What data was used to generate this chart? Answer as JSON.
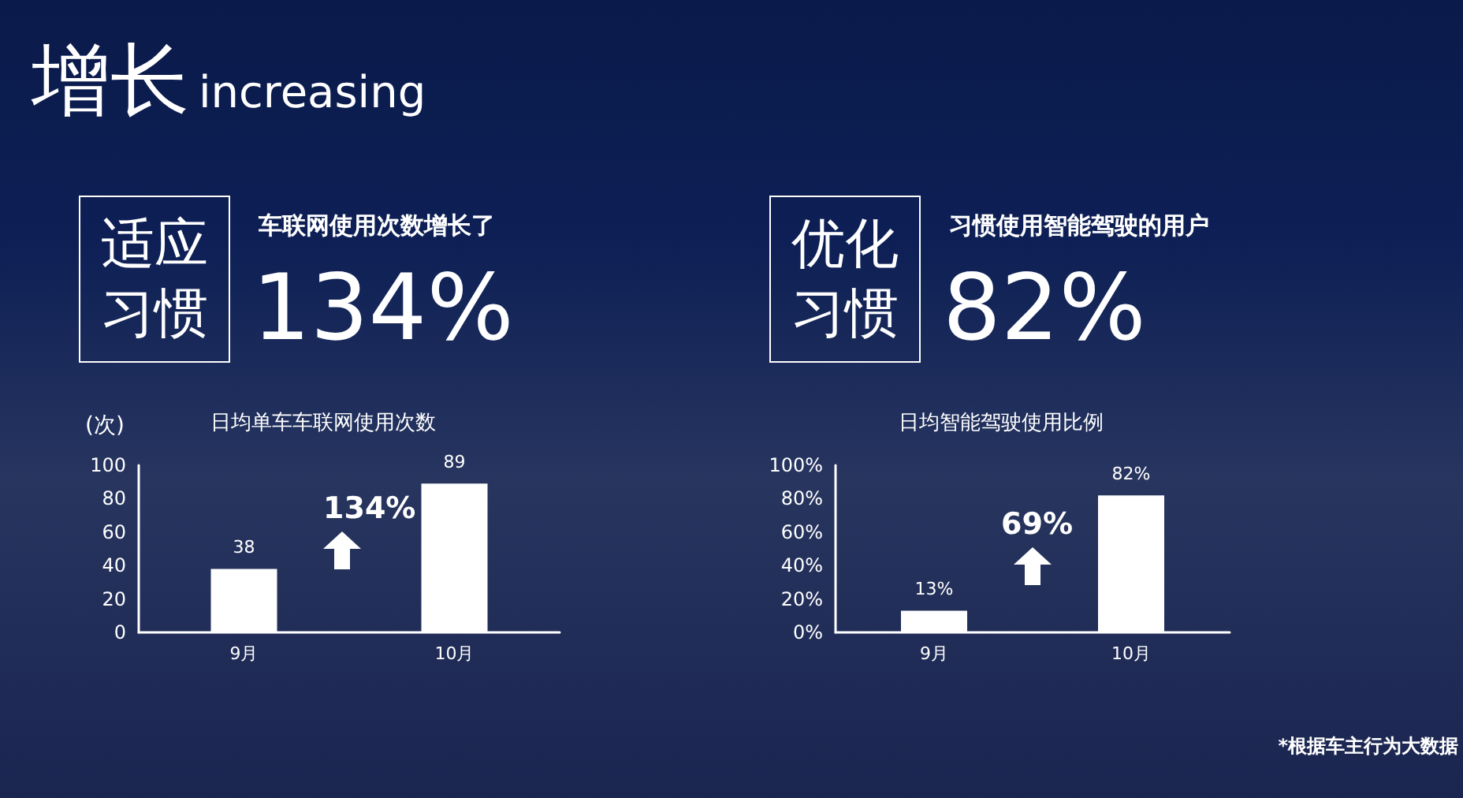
{
  "chart_data": [
    {
      "type": "other",
      "title": "增长",
      "subtitle": "increasing"
    },
    {
      "type": "other",
      "title": "适应习惯",
      "subtitle": "车联网使用次数增长了",
      "annotations": [
        "134%"
      ]
    },
    {
      "type": "other",
      "title": "优化习惯",
      "subtitle": "习惯使用智能驾驶的用户",
      "annotations": [
        "82%"
      ]
    },
    {
      "type": "bar",
      "title": "日均单车车联网使用次数",
      "ylabel": "(次)",
      "categories": [
        "9月",
        "10月"
      ],
      "values": [
        38,
        89
      ],
      "color": "#ffffff",
      "ylim": [
        0,
        100
      ],
      "yticks": [
        0,
        20,
        40,
        60,
        80,
        100
      ],
      "grid": false,
      "data_labels": true,
      "annotations": [
        {
          "text": "134%"
        }
      ]
    },
    {
      "type": "bar",
      "title": "日均智能驾驶使用比例",
      "categories": [
        "9月",
        "10月"
      ],
      "values": [
        13,
        82
      ],
      "value_labels": [
        "13%",
        "82%"
      ],
      "color": "#ffffff",
      "ylim": [
        0,
        100
      ],
      "yticks": [
        {
          "value": 0,
          "label": "0%"
        },
        {
          "value": 20,
          "label": "20%"
        },
        {
          "value": 40,
          "label": "40%"
        },
        {
          "value": 60,
          "label": "60%"
        },
        {
          "value": 80,
          "label": "80%"
        },
        {
          "value": 100,
          "label": "100%"
        }
      ],
      "grid": false,
      "annotations": [
        {
          "text": "69%"
        },
        "*根据车主行为大数据"
      ]
    }
  ]
}
